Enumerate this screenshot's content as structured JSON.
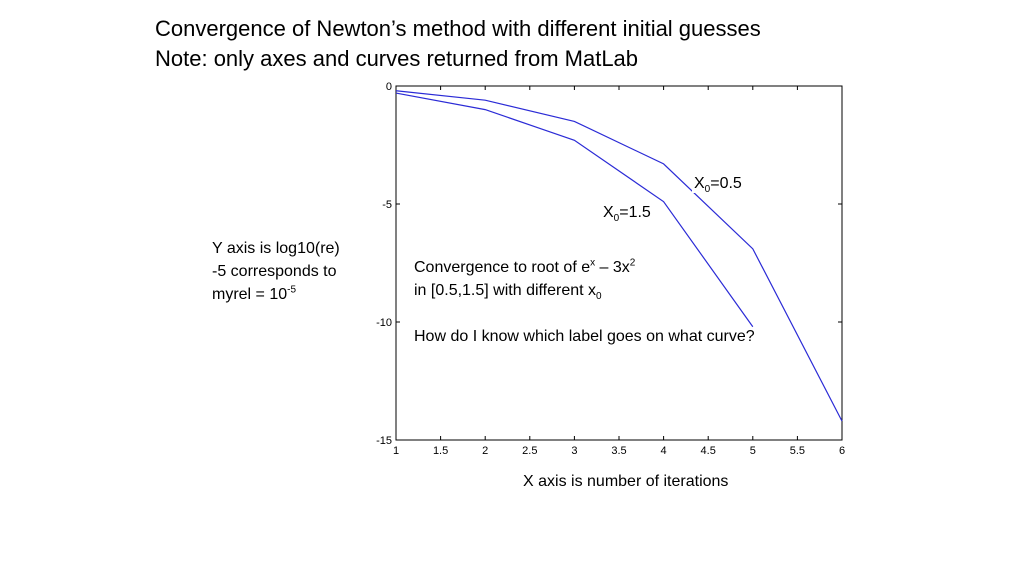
{
  "slide": {
    "title_line1": "Convergence of Newton’s method with different initial guesses",
    "title_line2": "Note: only axes and curves returned from MatLab",
    "left_note": {
      "line1": "Y axis is log10(re)",
      "line2": "-5 corresponds to",
      "line3_prefix": "myrel = 10",
      "line3_sup": "-5"
    },
    "center_note": {
      "line1_prefix": "Convergence to root of e",
      "line1_sup1": "x",
      "line1_mid": " – 3x",
      "line1_sup2": "2",
      "line2_prefix": "in [0.5,1.5] with different x",
      "line2_sub": "0",
      "line3": "How do I know which label goes on what curve?"
    },
    "xaxis_caption": "X axis is number of iterations",
    "curve_labels": {
      "a_base": "X",
      "a_sub": "0",
      "a_rest": "=0.5",
      "b_base": "X",
      "b_sub": "0",
      "b_rest": "=1.5"
    }
  },
  "chart_data": {
    "type": "line",
    "x": [
      1,
      2,
      3,
      4,
      5,
      6
    ],
    "xlim": [
      1,
      6
    ],
    "ylim": [
      -15,
      0
    ],
    "xticks": [
      "1",
      "1.5",
      "2",
      "2.5",
      "3",
      "3.5",
      "4",
      "4.5",
      "5",
      "5.5",
      "6"
    ],
    "yticks": [
      "0",
      "-5",
      "-10",
      "-15"
    ],
    "xtick_values": [
      1,
      1.5,
      2,
      2.5,
      3,
      3.5,
      4,
      4.5,
      5,
      5.5,
      6
    ],
    "ytick_values": [
      0,
      -5,
      -10,
      -15
    ],
    "series": [
      {
        "values": [
          -0.2,
          -0.6,
          -1.5,
          -3.3,
          -6.9,
          -14.2
        ],
        "color": "#2b2bd6"
      },
      {
        "values": [
          -0.3,
          -1.0,
          -2.3,
          -4.9,
          -10.2,
          null
        ],
        "color": "#2b2bd6"
      }
    ],
    "grid": false
  }
}
